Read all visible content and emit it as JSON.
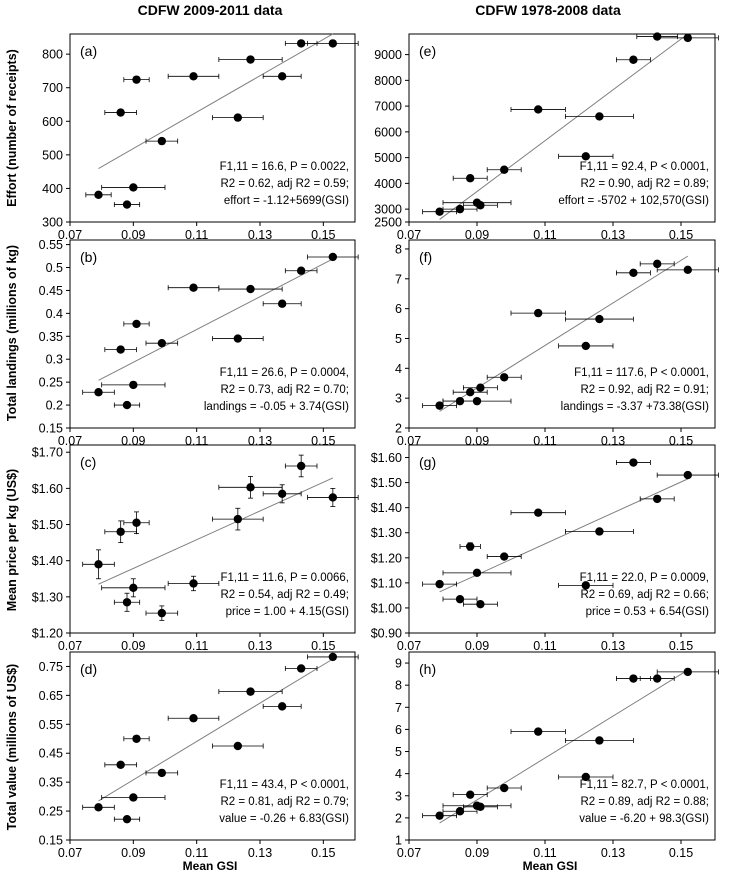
{
  "figure": {
    "left_title": "CDFW 2009-2011 data",
    "right_title": "CDFW 1978-2008 data",
    "x_axis_label": "Mean GSI",
    "row_ylabels": [
      "Effort (number of receipts)",
      "Total landings (millions of kg)",
      "Mean price per kg (US$)",
      "Total value (millions of US$)"
    ],
    "x_ticks": [
      "0.07",
      "0.09",
      "0.11",
      "0.13",
      "0.15"
    ],
    "x_range": [
      0.07,
      0.16
    ]
  },
  "chart_data": [
    {
      "id": "a",
      "label": "(a)",
      "type": "scatter",
      "ylim": [
        300,
        860
      ],
      "yticks": [
        300,
        400,
        500,
        600,
        700,
        800
      ],
      "ytick_labels": [
        "300",
        "400",
        "500",
        "600",
        "700",
        "800"
      ],
      "points": [
        {
          "x": 0.079,
          "y": 381,
          "xerr": 0.004
        },
        {
          "x": 0.09,
          "y": 403,
          "xerr": 0.01
        },
        {
          "x": 0.088,
          "y": 352,
          "xerr": 0.004
        },
        {
          "x": 0.091,
          "y": 724,
          "xerr": 0.004
        },
        {
          "x": 0.086,
          "y": 626,
          "xerr": 0.005
        },
        {
          "x": 0.099,
          "y": 541,
          "xerr": 0.005
        },
        {
          "x": 0.109,
          "y": 734,
          "xerr": 0.008
        },
        {
          "x": 0.127,
          "y": 784,
          "xerr": 0.01
        },
        {
          "x": 0.123,
          "y": 611,
          "xerr": 0.008
        },
        {
          "x": 0.137,
          "y": 734,
          "xerr": 0.006
        },
        {
          "x": 0.143,
          "y": 832,
          "xerr": 0.005
        },
        {
          "x": 0.153,
          "y": 832,
          "xerr": 0.008
        }
      ],
      "fit_x": [
        0.079,
        0.153
      ],
      "stats": [
        "F1,11 = 16.6, P = 0.0022,",
        "R2 = 0.62, adj R2 = 0.59;",
        "effort = -1.12+5699(GSI)"
      ]
    },
    {
      "id": "b",
      "label": "(b)",
      "type": "scatter",
      "ylim": [
        0.15,
        0.56
      ],
      "yticks": [
        0.15,
        0.2,
        0.25,
        0.3,
        0.35,
        0.4,
        0.45,
        0.5,
        0.55
      ],
      "ytick_labels": [
        "0.15",
        "0.2",
        "0.25",
        "0.3",
        "0.35",
        "0.4",
        "0.45",
        "0.5",
        "0.55"
      ],
      "points": [
        {
          "x": 0.079,
          "y": 0.228,
          "xerr": 0.005
        },
        {
          "x": 0.09,
          "y": 0.244,
          "xerr": 0.01
        },
        {
          "x": 0.088,
          "y": 0.2,
          "xerr": 0.004
        },
        {
          "x": 0.091,
          "y": 0.377,
          "xerr": 0.004
        },
        {
          "x": 0.086,
          "y": 0.321,
          "xerr": 0.005
        },
        {
          "x": 0.099,
          "y": 0.335,
          "xerr": 0.005
        },
        {
          "x": 0.109,
          "y": 0.456,
          "xerr": 0.008
        },
        {
          "x": 0.127,
          "y": 0.453,
          "xerr": 0.01
        },
        {
          "x": 0.123,
          "y": 0.345,
          "xerr": 0.008
        },
        {
          "x": 0.137,
          "y": 0.421,
          "xerr": 0.006
        },
        {
          "x": 0.143,
          "y": 0.493,
          "xerr": 0.005
        },
        {
          "x": 0.153,
          "y": 0.523,
          "xerr": 0.008
        }
      ],
      "fit_x": [
        0.079,
        0.153
      ],
      "stats": [
        "F1,11 = 26.6, P = 0.0004,",
        "R2 = 0.73, adj R2 = 0.70;",
        "landings = -0.05 + 3.74(GSI)"
      ]
    },
    {
      "id": "c",
      "label": "(c)",
      "type": "scatter",
      "ylim": [
        1.2,
        1.72
      ],
      "yticks": [
        1.2,
        1.3,
        1.4,
        1.5,
        1.6,
        1.7
      ],
      "ytick_labels": [
        "$1.20",
        "$1.30",
        "$1.40",
        "$1.50",
        "$1.60",
        "$1.70"
      ],
      "points": [
        {
          "x": 0.079,
          "y": 1.39,
          "xerr": 0.005,
          "yerr": 0.04
        },
        {
          "x": 0.09,
          "y": 1.325,
          "xerr": 0.01,
          "yerr": 0.025
        },
        {
          "x": 0.088,
          "y": 1.285,
          "xerr": 0.004,
          "yerr": 0.025
        },
        {
          "x": 0.091,
          "y": 1.505,
          "xerr": 0.004,
          "yerr": 0.03
        },
        {
          "x": 0.086,
          "y": 1.48,
          "xerr": 0.005,
          "yerr": 0.03
        },
        {
          "x": 0.099,
          "y": 1.255,
          "xerr": 0.005,
          "yerr": 0.02
        },
        {
          "x": 0.109,
          "y": 1.337,
          "xerr": 0.008,
          "yerr": 0.02
        },
        {
          "x": 0.127,
          "y": 1.603,
          "xerr": 0.01,
          "yerr": 0.03
        },
        {
          "x": 0.123,
          "y": 1.515,
          "xerr": 0.008,
          "yerr": 0.03
        },
        {
          "x": 0.137,
          "y": 1.585,
          "xerr": 0.006,
          "yerr": 0.025
        },
        {
          "x": 0.143,
          "y": 1.662,
          "xerr": 0.005,
          "yerr": 0.03
        },
        {
          "x": 0.153,
          "y": 1.575,
          "xerr": 0.008,
          "yerr": 0.025
        }
      ],
      "fit_x": [
        0.079,
        0.153
      ],
      "stats": [
        "F1,11 = 11.6, P = 0.0066,",
        "R2 = 0.54, adj R2 = 0.49;",
        "price = 1.00 + 4.15(GSI)"
      ]
    },
    {
      "id": "d",
      "label": "(d)",
      "type": "scatter",
      "ylim": [
        0.15,
        0.8
      ],
      "yticks": [
        0.15,
        0.25,
        0.35,
        0.45,
        0.55,
        0.65,
        0.75
      ],
      "ytick_labels": [
        "0.15",
        "0.25",
        "0.35",
        "0.45",
        "0.55",
        "0.65",
        "0.75"
      ],
      "points": [
        {
          "x": 0.079,
          "y": 0.263,
          "xerr": 0.005
        },
        {
          "x": 0.09,
          "y": 0.297,
          "xerr": 0.01
        },
        {
          "x": 0.088,
          "y": 0.222,
          "xerr": 0.004
        },
        {
          "x": 0.091,
          "y": 0.5,
          "xerr": 0.004
        },
        {
          "x": 0.086,
          "y": 0.41,
          "xerr": 0.005
        },
        {
          "x": 0.099,
          "y": 0.382,
          "xerr": 0.005
        },
        {
          "x": 0.109,
          "y": 0.571,
          "xerr": 0.008
        },
        {
          "x": 0.127,
          "y": 0.663,
          "xerr": 0.01
        },
        {
          "x": 0.123,
          "y": 0.475,
          "xerr": 0.008
        },
        {
          "x": 0.137,
          "y": 0.612,
          "xerr": 0.006
        },
        {
          "x": 0.143,
          "y": 0.743,
          "xerr": 0.005
        },
        {
          "x": 0.153,
          "y": 0.783,
          "xerr": 0.008
        }
      ],
      "fit_x": [
        0.079,
        0.153
      ],
      "stats": [
        "F1,11 = 43.4, P < 0.0001,",
        "R2 = 0.81, adj R2 = 0.79;",
        "value = -0.26 + 6.83(GSI)"
      ]
    },
    {
      "id": "e",
      "label": "(e)",
      "type": "scatter",
      "ylim": [
        2500,
        9800
      ],
      "yticks": [
        2500,
        3000,
        4000,
        5000,
        6000,
        7000,
        8000,
        9000
      ],
      "ytick_labels": [
        "2500",
        "3000",
        "4000",
        "5000",
        "6000",
        "7000",
        "8000",
        "9000"
      ],
      "points": [
        {
          "x": 0.079,
          "y": 2900,
          "xerr": 0.005
        },
        {
          "x": 0.085,
          "y": 3000,
          "xerr": 0.005
        },
        {
          "x": 0.09,
          "y": 3250,
          "xerr": 0.01
        },
        {
          "x": 0.091,
          "y": 3150,
          "xerr": 0.005
        },
        {
          "x": 0.088,
          "y": 4200,
          "xerr": 0.005
        },
        {
          "x": 0.098,
          "y": 4530,
          "xerr": 0.005
        },
        {
          "x": 0.108,
          "y": 6870,
          "xerr": 0.008
        },
        {
          "x": 0.126,
          "y": 6600,
          "xerr": 0.01
        },
        {
          "x": 0.122,
          "y": 5050,
          "xerr": 0.008
        },
        {
          "x": 0.136,
          "y": 8800,
          "xerr": 0.005
        },
        {
          "x": 0.143,
          "y": 9700,
          "xerr": 0.006
        },
        {
          "x": 0.152,
          "y": 9650,
          "xerr": 0.009
        }
      ],
      "fit_x": [
        0.079,
        0.152
      ],
      "stats": [
        "F1,11 = 92.4, P < 0.0001,",
        "R2 = 0.90, adj R2 = 0.89;",
        "effort = -5702 + 102,570(GSI)"
      ]
    },
    {
      "id": "f",
      "label": "(f)",
      "type": "scatter",
      "ylim": [
        2,
        8.3
      ],
      "yticks": [
        2,
        3,
        4,
        5,
        6,
        7,
        8
      ],
      "ytick_labels": [
        "2",
        "3",
        "4",
        "5",
        "6",
        "7",
        "8"
      ],
      "points": [
        {
          "x": 0.079,
          "y": 2.75,
          "xerr": 0.005
        },
        {
          "x": 0.085,
          "y": 2.9,
          "xerr": 0.005
        },
        {
          "x": 0.088,
          "y": 3.2,
          "xerr": 0.005
        },
        {
          "x": 0.09,
          "y": 2.9,
          "xerr": 0.01
        },
        {
          "x": 0.091,
          "y": 3.35,
          "xerr": 0.005
        },
        {
          "x": 0.098,
          "y": 3.7,
          "xerr": 0.005
        },
        {
          "x": 0.108,
          "y": 5.85,
          "xerr": 0.008
        },
        {
          "x": 0.126,
          "y": 5.65,
          "xerr": 0.01
        },
        {
          "x": 0.122,
          "y": 4.75,
          "xerr": 0.008
        },
        {
          "x": 0.136,
          "y": 7.2,
          "xerr": 0.005
        },
        {
          "x": 0.143,
          "y": 7.5,
          "xerr": 0.005
        },
        {
          "x": 0.152,
          "y": 7.3,
          "xerr": 0.009
        }
      ],
      "fit_x": [
        0.079,
        0.152
      ],
      "stats": [
        "F1,11 = 117.6, P < 0.0001,",
        "R2 = 0.92, adj R2 = 0.91;",
        "landings = -3.37 +73.38(GSI)"
      ]
    },
    {
      "id": "g",
      "label": "(g)",
      "type": "scatter",
      "ylim": [
        0.9,
        1.65
      ],
      "yticks": [
        0.9,
        1.0,
        1.1,
        1.2,
        1.3,
        1.4,
        1.5,
        1.6
      ],
      "ytick_labels": [
        "$0.90",
        "$1.00",
        "$1.10",
        "$1.20",
        "$1.30",
        "$1.40",
        "$1.50",
        "$1.60"
      ],
      "points": [
        {
          "x": 0.079,
          "y": 1.095,
          "xerr": 0.005
        },
        {
          "x": 0.085,
          "y": 1.035,
          "xerr": 0.005
        },
        {
          "x": 0.088,
          "y": 1.245,
          "xerr": 0.003,
          "yerr": 0.015
        },
        {
          "x": 0.09,
          "y": 1.14,
          "xerr": 0.01
        },
        {
          "x": 0.091,
          "y": 1.015,
          "xerr": 0.005
        },
        {
          "x": 0.098,
          "y": 1.205,
          "xerr": 0.005
        },
        {
          "x": 0.108,
          "y": 1.38,
          "xerr": 0.008
        },
        {
          "x": 0.126,
          "y": 1.305,
          "xerr": 0.01
        },
        {
          "x": 0.122,
          "y": 1.09,
          "xerr": 0.008
        },
        {
          "x": 0.136,
          "y": 1.58,
          "xerr": 0.005
        },
        {
          "x": 0.143,
          "y": 1.435,
          "xerr": 0.005
        },
        {
          "x": 0.152,
          "y": 1.53,
          "xerr": 0.009
        }
      ],
      "fit_x": [
        0.079,
        0.152
      ],
      "stats": [
        "F1,11 = 22.0, P = 0.0009,",
        "R2 = 0.69, adj R2 = 0.66;",
        "price = 0.53 + 6.54(GSI)"
      ]
    },
    {
      "id": "h",
      "label": "(h)",
      "type": "scatter",
      "ylim": [
        1,
        9.5
      ],
      "yticks": [
        1,
        2,
        3,
        4,
        5,
        6,
        7,
        8,
        9
      ],
      "ytick_labels": [
        "1",
        "2",
        "3",
        "4",
        "5",
        "6",
        "7",
        "8",
        "9"
      ],
      "points": [
        {
          "x": 0.079,
          "y": 2.1,
          "xerr": 0.005
        },
        {
          "x": 0.085,
          "y": 2.3,
          "xerr": 0.005
        },
        {
          "x": 0.088,
          "y": 3.05,
          "xerr": 0.005
        },
        {
          "x": 0.09,
          "y": 2.55,
          "xerr": 0.01
        },
        {
          "x": 0.091,
          "y": 2.5,
          "xerr": 0.005
        },
        {
          "x": 0.098,
          "y": 3.35,
          "xerr": 0.005
        },
        {
          "x": 0.108,
          "y": 5.9,
          "xerr": 0.008
        },
        {
          "x": 0.126,
          "y": 5.5,
          "xerr": 0.01
        },
        {
          "x": 0.122,
          "y": 3.85,
          "xerr": 0.008
        },
        {
          "x": 0.136,
          "y": 8.3,
          "xerr": 0.005
        },
        {
          "x": 0.143,
          "y": 8.3,
          "xerr": 0.005
        },
        {
          "x": 0.152,
          "y": 8.6,
          "xerr": 0.009
        }
      ],
      "fit_x": [
        0.079,
        0.152
      ],
      "stats": [
        "F1,11 = 82.7, P < 0.0001,",
        "R2 = 0.89, adj R2 = 0.88;",
        "value = -6.20 + 98.3(GSI)"
      ]
    }
  ]
}
